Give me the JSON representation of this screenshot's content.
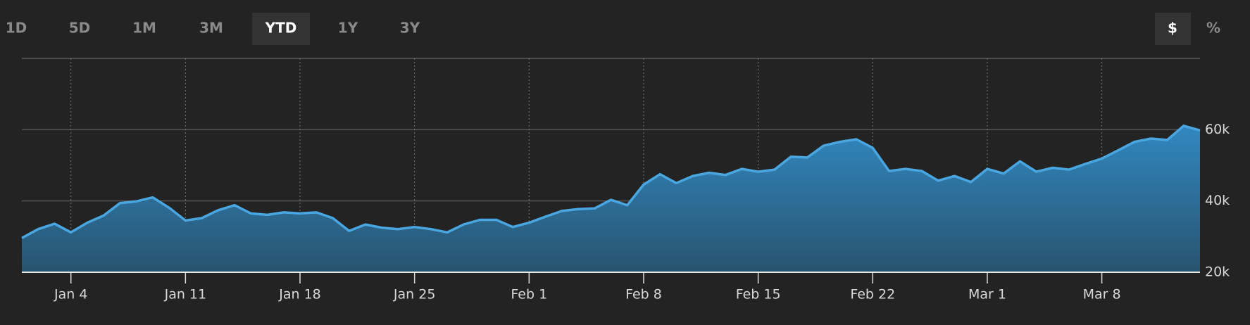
{
  "controls": {
    "ranges": [
      "1D",
      "5D",
      "1M",
      "3M",
      "YTD",
      "1Y",
      "3Y"
    ],
    "units": [
      "$",
      "%"
    ]
  },
  "chart_data": {
    "type": "area",
    "categories": [
      null,
      null,
      null,
      "Jan 4",
      null,
      null,
      null,
      null,
      null,
      null,
      "Jan 11",
      null,
      null,
      null,
      null,
      null,
      null,
      "Jan 18",
      null,
      null,
      null,
      null,
      null,
      null,
      "Jan 25",
      null,
      null,
      null,
      null,
      null,
      null,
      "Feb 1",
      null,
      null,
      null,
      null,
      null,
      null,
      "Feb 8",
      null,
      null,
      null,
      null,
      null,
      null,
      "Feb 15",
      null,
      null,
      null,
      null,
      null,
      null,
      "Feb 22",
      null,
      null,
      null,
      null,
      null,
      null,
      "Mar 1",
      null,
      null,
      null,
      null,
      null,
      null,
      "Mar 8",
      null,
      null,
      null,
      null,
      null,
      null
    ],
    "series": [
      {
        "color": "#4aa6e0",
        "values": [
          29600,
          32100,
          33600,
          31200,
          33900,
          35900,
          39400,
          39900,
          41000,
          38100,
          34500,
          35200,
          37400,
          38800,
          36500,
          36100,
          36800,
          36500,
          36800,
          35200,
          31600,
          33400,
          32500,
          32100,
          32700,
          32100,
          31200,
          33400,
          34700,
          34700,
          32700,
          33900,
          35600,
          37200,
          37700,
          37900,
          40300,
          38800,
          44600,
          47500,
          45000,
          47000,
          47900,
          47300,
          49000,
          48200,
          48800,
          52400,
          52200,
          55500,
          56600,
          57300,
          54900,
          48400,
          49000,
          48400,
          45700,
          47000,
          45300,
          49000,
          47700,
          51100,
          48200,
          49300,
          48800,
          50400,
          51900,
          54200,
          56600,
          57500,
          57100,
          61100,
          59800
        ]
      }
    ],
    "ylim": [
      20000,
      80000
    ],
    "yticks": [
      {
        "value": 20000,
        "label": "20k"
      },
      {
        "value": 40000,
        "label": "40k"
      },
      {
        "value": 60000,
        "label": "60k"
      }
    ],
    "grid": true
  }
}
